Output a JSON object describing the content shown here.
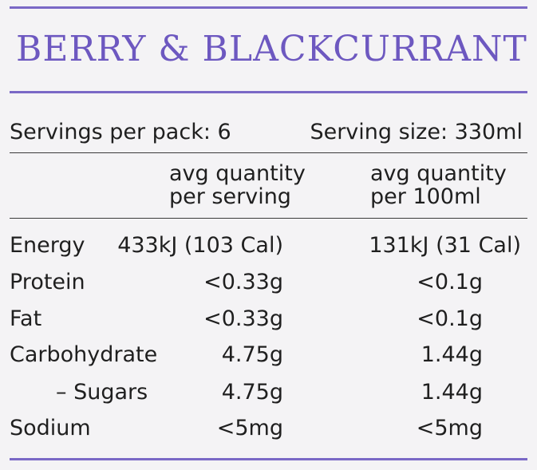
{
  "title": "BERRY & BLACKCURRANT",
  "servings_per_pack": "Servings per pack: 6",
  "serving_size": "Serving size: 330ml",
  "columns": {
    "per_serving": [
      "avg quantity",
      "per serving"
    ],
    "per_100ml": [
      "avg quantity",
      "per 100ml"
    ]
  },
  "rows": [
    {
      "label": "Energy",
      "per_serving": "433kJ (103 Cal)",
      "per_100ml": "131kJ (31 Cal)"
    },
    {
      "label": "Protein",
      "per_serving": "<0.33g",
      "per_100ml": "<0.1g"
    },
    {
      "label": "Fat",
      "per_serving": "<0.33g",
      "per_100ml": "<0.1g"
    },
    {
      "label": "Carbohydrate",
      "per_serving": "4.75g",
      "per_100ml": "1.44g"
    },
    {
      "label": "– Sugars",
      "per_serving": "4.75g",
      "per_100ml": "1.44g"
    },
    {
      "label": "Sodium",
      "per_serving": "<5mg",
      "per_100ml": "<5mg"
    }
  ],
  "colors": {
    "accent": "#7a68c6",
    "title": "#6d58c0",
    "background": "#f4f3f5"
  }
}
